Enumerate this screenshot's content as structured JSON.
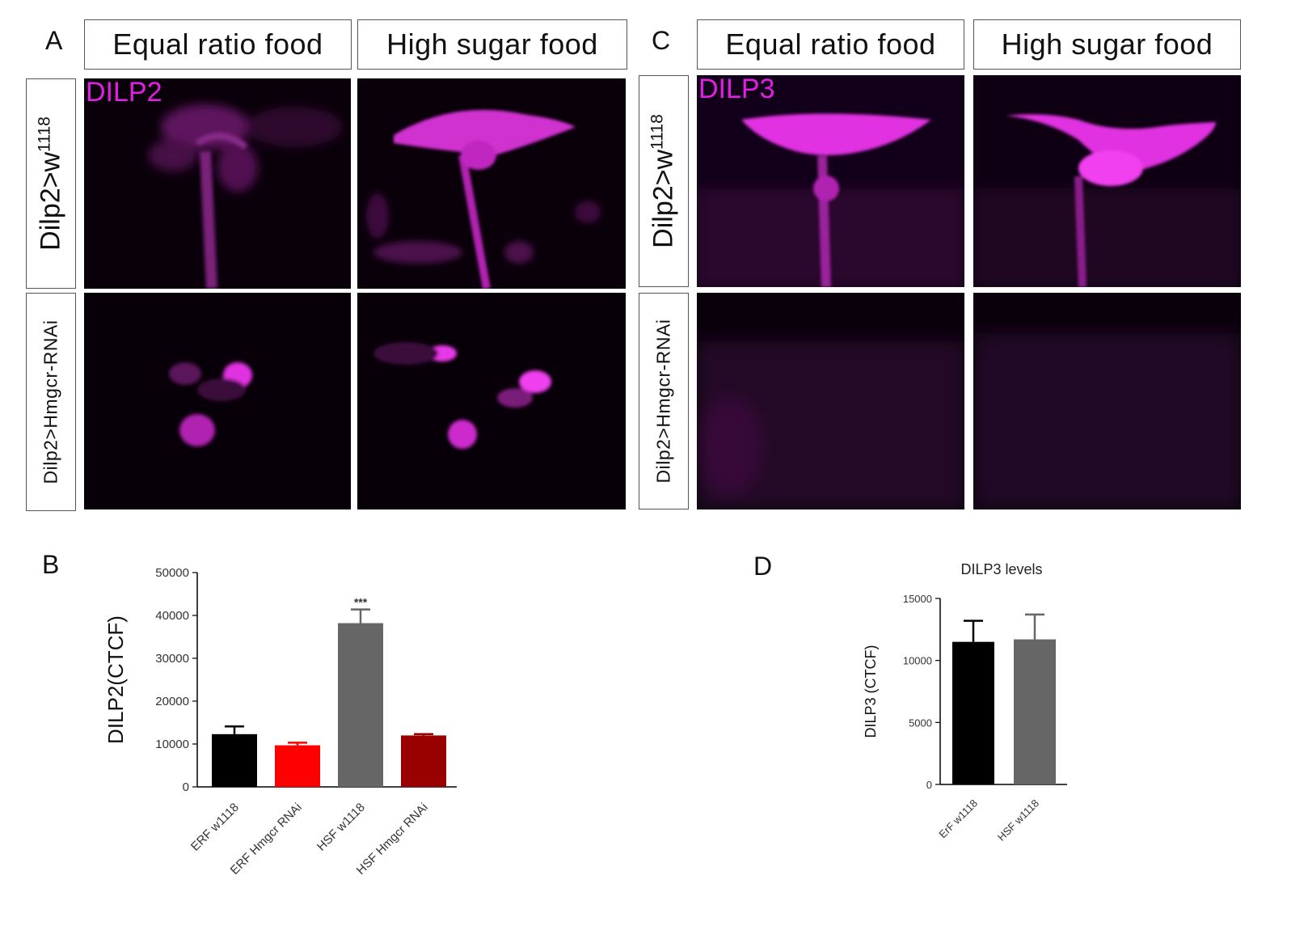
{
  "panels": {
    "A": "A",
    "B": "B",
    "C": "C",
    "D": "D"
  },
  "columns": {
    "equal": "Equal ratio food",
    "high": "High sugar food"
  },
  "rows": {
    "control_prefix": "Dilp2>w",
    "control_sup": "1118",
    "rnai": "Dilp2>Hmgcr-RNAi"
  },
  "stains": {
    "left": "DILP2",
    "right": "DILP3"
  },
  "colors": {
    "stain": "#e020e0",
    "black_bar": "#000000",
    "red_bar": "#ff0000",
    "gray_bar": "#666666",
    "darkred_bar": "#990000"
  },
  "chart_data": [
    {
      "panel": "B",
      "type": "bar",
      "title": "",
      "ylabel": "DILP2(CTCF)",
      "xlabel": "",
      "ylim": [
        0,
        50000
      ],
      "yticks": [
        0,
        10000,
        20000,
        30000,
        40000,
        50000
      ],
      "categories": [
        "ERF w1118",
        "ERF Hmgcr RNAi",
        "HSF w1118",
        "HSF Hmgcr RNAi"
      ],
      "values": [
        12300,
        9700,
        38200,
        12000
      ],
      "errors": [
        1800,
        600,
        3200,
        300
      ],
      "bar_colors": [
        "#000000",
        "#ff0000",
        "#666666",
        "#990000"
      ],
      "annotations": [
        {
          "category": "HSF w1118",
          "text": "***"
        }
      ]
    },
    {
      "panel": "D",
      "type": "bar",
      "title": "DILP3 levels",
      "ylabel": "DILP3 (CTCF)",
      "xlabel": "",
      "ylim": [
        0,
        15000
      ],
      "yticks": [
        0,
        5000,
        10000,
        15000
      ],
      "categories": [
        "ErF w1118",
        "HSF w1118"
      ],
      "values": [
        11500,
        11700
      ],
      "errors": [
        1700,
        2000
      ],
      "bar_colors": [
        "#000000",
        "#666666"
      ]
    }
  ]
}
